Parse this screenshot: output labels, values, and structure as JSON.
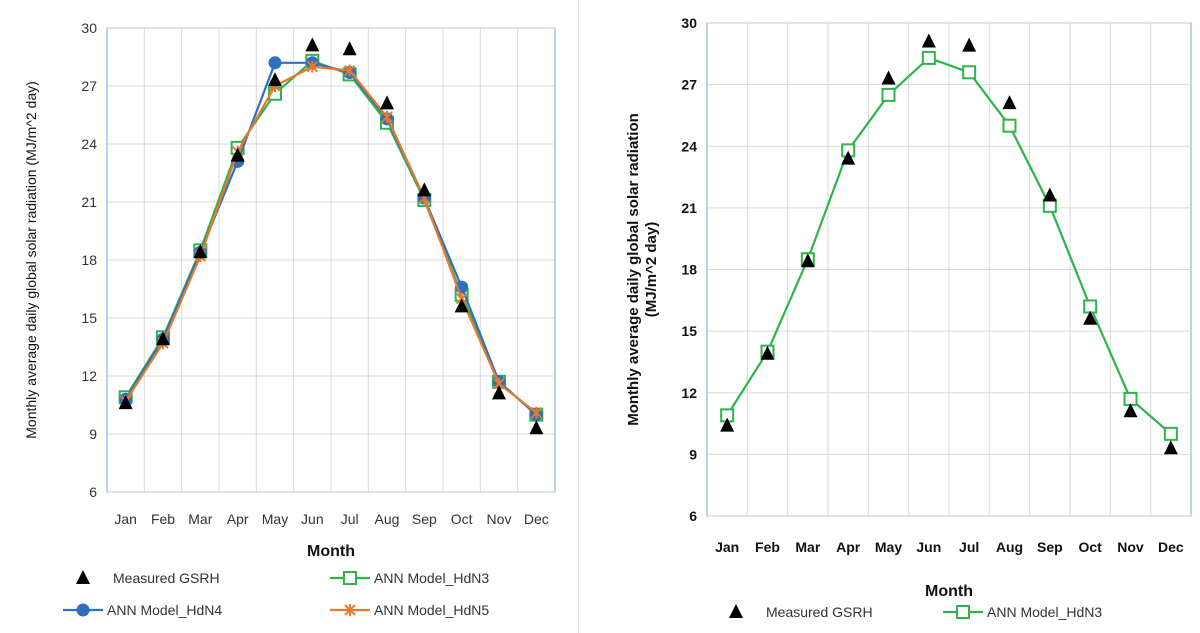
{
  "chart_data": [
    {
      "type": "line",
      "categories": [
        "Jan",
        "Feb",
        "Mar",
        "Apr",
        "May",
        "Jun",
        "Jul",
        "Aug",
        "Sep",
        "Oct",
        "Nov",
        "Dec"
      ],
      "xlabel": "Month",
      "ylabel": "Monthly average daily global solar radiation (MJ/m^2 day)",
      "ylim": [
        6,
        30
      ],
      "yticks": [
        6,
        9,
        12,
        15,
        18,
        21,
        24,
        27,
        30
      ],
      "grid": true,
      "legend": "bottom",
      "series": [
        {
          "name": "Measured GSRH",
          "marker": "triangle",
          "line": false,
          "color": "#000000",
          "values": [
            10.6,
            13.9,
            18.4,
            23.4,
            27.3,
            29.1,
            28.9,
            26.1,
            21.6,
            15.6,
            11.1,
            9.3
          ]
        },
        {
          "name": "ANN Model_HdN3",
          "marker": "square-open",
          "line": true,
          "color": "#2fb34a",
          "values": [
            10.9,
            14.0,
            18.5,
            23.8,
            26.6,
            28.3,
            27.6,
            25.1,
            21.1,
            16.2,
            11.7,
            10.0
          ]
        },
        {
          "name": "ANN Model_HdN4",
          "marker": "circle",
          "line": true,
          "color": "#2e6fc1",
          "values": [
            10.8,
            13.9,
            18.4,
            23.1,
            28.2,
            28.2,
            27.7,
            25.3,
            21.2,
            16.6,
            11.7,
            10.0
          ]
        },
        {
          "name": "ANN Model_HdN5",
          "marker": "x",
          "line": true,
          "color": "#e8782b",
          "values": [
            10.7,
            13.7,
            18.2,
            23.6,
            27.0,
            28.0,
            27.8,
            25.4,
            21.2,
            16.0,
            11.6,
            10.1
          ]
        }
      ]
    },
    {
      "type": "line",
      "categories": [
        "Jan",
        "Feb",
        "Mar",
        "Apr",
        "May",
        "Jun",
        "Jul",
        "Aug",
        "Sep",
        "Oct",
        "Nov",
        "Dec"
      ],
      "xlabel": "Month",
      "ylabel_line1": "Monthly average daily global solar radiation",
      "ylabel_line2": "(MJ/m^2 day)",
      "ylim": [
        6,
        30
      ],
      "yticks": [
        6,
        9,
        12,
        15,
        18,
        21,
        24,
        27,
        30
      ],
      "grid": true,
      "legend": "bottom",
      "series": [
        {
          "name": "Measured GSRH",
          "marker": "triangle",
          "line": false,
          "color": "#000000",
          "values": [
            10.4,
            13.9,
            18.4,
            23.4,
            27.3,
            29.1,
            28.9,
            26.1,
            21.6,
            15.6,
            11.1,
            9.3
          ]
        },
        {
          "name": "ANN Model_HdN3",
          "marker": "square-open",
          "line": true,
          "color": "#2fb34a",
          "values": [
            10.9,
            14.0,
            18.5,
            23.8,
            26.5,
            28.3,
            27.6,
            25.0,
            21.1,
            16.2,
            11.7,
            10.0
          ]
        }
      ]
    }
  ]
}
